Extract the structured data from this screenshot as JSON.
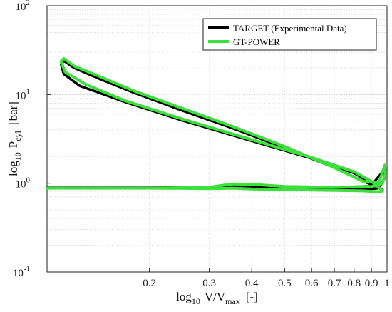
{
  "chart_data": {
    "type": "line",
    "title": "",
    "xscale": "log",
    "yscale": "log",
    "xlim": [
      0.1,
      1
    ],
    "ylim": [
      0.1,
      100
    ],
    "grid": true,
    "minor_grid": true,
    "legend_position": "top-right",
    "xlabel": {
      "prefix": "log",
      "prefix_sub": "10",
      "var": "V/V",
      "var_sub": "max",
      "unit": "[-]"
    },
    "ylabel": {
      "prefix": "log",
      "prefix_sub": "10",
      "var": "P",
      "var_sub": "cyl",
      "unit": "[bar]"
    },
    "xticks": [
      {
        "value": 0.2,
        "label": "0.2"
      },
      {
        "value": 0.3,
        "label": "0.3"
      },
      {
        "value": 0.4,
        "label": "0.4"
      },
      {
        "value": 0.5,
        "label": "0.5"
      },
      {
        "value": 0.6,
        "label": "0.6"
      },
      {
        "value": 0.7,
        "label": "0.7"
      },
      {
        "value": 0.8,
        "label": "0.8"
      },
      {
        "value": 0.9,
        "label": "0.9"
      },
      {
        "value": 1,
        "label": "1"
      }
    ],
    "yticks": [
      {
        "value": 0.1,
        "base": "10",
        "exp": "-1"
      },
      {
        "value": 1,
        "base": "10",
        "exp": "0"
      },
      {
        "value": 10,
        "base": "10",
        "exp": "1"
      },
      {
        "value": 100,
        "base": "10",
        "exp": "2"
      }
    ],
    "series": [
      {
        "name": "TARGET (Experimental Data)",
        "color": "#000000",
        "x": [
          0.9,
          0.98,
          0.985,
          0.95,
          0.85,
          0.7,
          0.5,
          0.35,
          0.25,
          0.18,
          0.14,
          0.12,
          0.112,
          0.11,
          0.112,
          0.125,
          0.17,
          0.25,
          0.4,
          0.6,
          0.8,
          0.9,
          0.97,
          0.95,
          0.85,
          0.6,
          0.4,
          0.35,
          0.3,
          0.2,
          0.1,
          0.2,
          0.3,
          0.35,
          0.4,
          0.5,
          0.7,
          0.9
        ],
        "y": [
          0.95,
          1.4,
          1.15,
          0.9,
          1.05,
          1.5,
          2.5,
          4.2,
          6.6,
          10.5,
          15.5,
          20,
          24,
          22,
          17,
          12.5,
          8.2,
          5.1,
          3.0,
          1.9,
          1.3,
          1.0,
          0.84,
          0.88,
          0.85,
          0.86,
          0.88,
          0.9,
          0.88,
          0.89,
          0.89,
          0.89,
          0.9,
          0.94,
          0.91,
          0.88,
          0.89,
          0.93
        ]
      },
      {
        "name": "GT-POWER",
        "color": "#3ce03c",
        "x": [
          0.95,
          0.985,
          0.99,
          0.97,
          0.85,
          0.7,
          0.5,
          0.35,
          0.25,
          0.18,
          0.14,
          0.12,
          0.112,
          0.11,
          0.113,
          0.13,
          0.17,
          0.25,
          0.4,
          0.6,
          0.8,
          0.9,
          0.97,
          0.95,
          0.85,
          0.6,
          0.4,
          0.35,
          0.3,
          0.2,
          0.1,
          0.2,
          0.3,
          0.35,
          0.4,
          0.5,
          0.7,
          0.9,
          0.97
        ],
        "y": [
          1.05,
          1.6,
          1.3,
          1.0,
          1.05,
          1.5,
          2.6,
          4.4,
          7.0,
          11,
          16.5,
          21,
          25.5,
          23.5,
          18,
          13,
          8.5,
          5.3,
          3.1,
          1.95,
          1.35,
          1.05,
          0.82,
          0.8,
          0.82,
          0.84,
          0.86,
          0.88,
          0.87,
          0.88,
          0.88,
          0.88,
          0.9,
          0.98,
          0.97,
          0.92,
          0.9,
          0.92,
          0.99
        ]
      }
    ]
  }
}
